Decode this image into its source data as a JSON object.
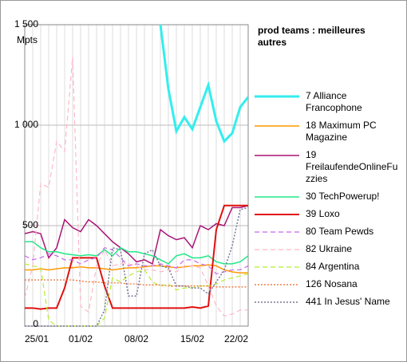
{
  "chart_data": {
    "type": "line",
    "title": "prod teams : meilleures autres",
    "y_unit": "Mpts",
    "categories": [
      "25/01",
      null,
      null,
      null,
      null,
      null,
      null,
      "01/02",
      null,
      null,
      null,
      null,
      null,
      null,
      "08/02",
      null,
      null,
      null,
      null,
      null,
      null,
      "15/02",
      null,
      null,
      null,
      null,
      null,
      null,
      "22/02"
    ],
    "ylim": [
      0,
      1500
    ],
    "yticks": [
      0,
      500,
      {
        "value": 1000,
        "label": "1 000"
      },
      {
        "value": 1500,
        "label": "1 500"
      }
    ],
    "grid": true,
    "legend": "right",
    "series": [
      {
        "name": "7 Alliance Francophone",
        "color": "#33eeee",
        "style": "solid",
        "line_width": 3,
        "values": [
          null,
          null,
          null,
          null,
          null,
          null,
          null,
          null,
          null,
          null,
          null,
          null,
          null,
          null,
          null,
          null,
          null,
          1500,
          1180,
          970,
          1040,
          980,
          1090,
          1200,
          1020,
          920,
          960,
          1090,
          1140
        ]
      },
      {
        "name": "18 Maximum PC Magazine",
        "color": "#ff9900",
        "style": "solid",
        "line_width": 1.5,
        "values": [
          280,
          280,
          285,
          280,
          285,
          290,
          290,
          295,
          290,
          290,
          285,
          280,
          285,
          290,
          290,
          295,
          300,
          300,
          295,
          290,
          295,
          300,
          300,
          305,
          300,
          280,
          270,
          265,
          265
        ]
      },
      {
        "name": "19 FreilaufendeOnlineFuzzies",
        "color": "#aa1477",
        "style": "solid",
        "line_width": 1.5,
        "values": [
          460,
          470,
          460,
          340,
          390,
          530,
          490,
          470,
          530,
          500,
          460,
          420,
          390,
          360,
          320,
          330,
          310,
          480,
          450,
          430,
          440,
          390,
          500,
          480,
          510,
          500,
          590,
          590,
          600
        ]
      },
      {
        "name": "30 TechPowerup!",
        "color": "#22e888",
        "style": "solid",
        "line_width": 1.5,
        "values": [
          420,
          420,
          390,
          370,
          370,
          360,
          355,
          350,
          355,
          350,
          380,
          350,
          390,
          370,
          370,
          360,
          350,
          330,
          310,
          350,
          360,
          340,
          340,
          350,
          320,
          310,
          310,
          320,
          350
        ]
      },
      {
        "name": "39 Loxo",
        "color": "#e01010",
        "style": "solid",
        "line_width": 2,
        "values": [
          90,
          90,
          85,
          90,
          90,
          190,
          340,
          340,
          340,
          340,
          200,
          90,
          90,
          90,
          90,
          90,
          90,
          90,
          90,
          90,
          90,
          95,
          90,
          100,
          480,
          600,
          600,
          600,
          600
        ]
      },
      {
        "name": "80 Team Pewds",
        "color": "#cc66ee",
        "style": "dashed",
        "line_width": 1.2,
        "values": [
          350,
          330,
          340,
          360,
          350,
          330,
          330,
          310,
          330,
          340,
          390,
          380,
          340,
          300,
          310,
          300,
          300,
          310,
          300,
          290,
          330,
          330,
          310,
          300,
          260,
          270,
          280,
          280,
          300
        ]
      },
      {
        "name": "82 Ukraine",
        "color": "#ffb8c8",
        "style": "dashed",
        "line_width": 1.2,
        "values": [
          140,
          300,
          710,
          690,
          920,
          870,
          1340,
          100,
          70,
          300,
          380,
          300,
          310,
          310,
          300,
          280,
          280,
          270,
          280,
          270,
          300,
          300,
          290,
          200,
          100,
          50,
          60,
          80,
          80
        ]
      },
      {
        "name": "84 Argentina",
        "color": "#b4ee30",
        "style": "dashed",
        "line_width": 1.2,
        "values": [
          310,
          300,
          290,
          30,
          0,
          0,
          0,
          0,
          0,
          0,
          40,
          240,
          220,
          250,
          270,
          280,
          220,
          200,
          210,
          180,
          190,
          190,
          200,
          200,
          210,
          230,
          240,
          250,
          260
        ]
      },
      {
        "name": "126 Nosana",
        "color": "#ee6622",
        "style": "dotted",
        "line_width": 1.2,
        "values": [
          230,
          230,
          230,
          230,
          230,
          230,
          230,
          225,
          220,
          220,
          215,
          215,
          215,
          210,
          210,
          205,
          205,
          205,
          200,
          200,
          200,
          200,
          200,
          200,
          195,
          195,
          195,
          195,
          195
        ]
      },
      {
        "name": "441 In Jesus' Name",
        "color": "#777799",
        "style": "dotted",
        "line_width": 1.5,
        "values": [
          0,
          0,
          0,
          0,
          0,
          0,
          0,
          0,
          0,
          0,
          80,
          390,
          380,
          150,
          150,
          360,
          380,
          300,
          290,
          200,
          200,
          190,
          190,
          160,
          220,
          280,
          400,
          580,
          590
        ]
      }
    ]
  }
}
